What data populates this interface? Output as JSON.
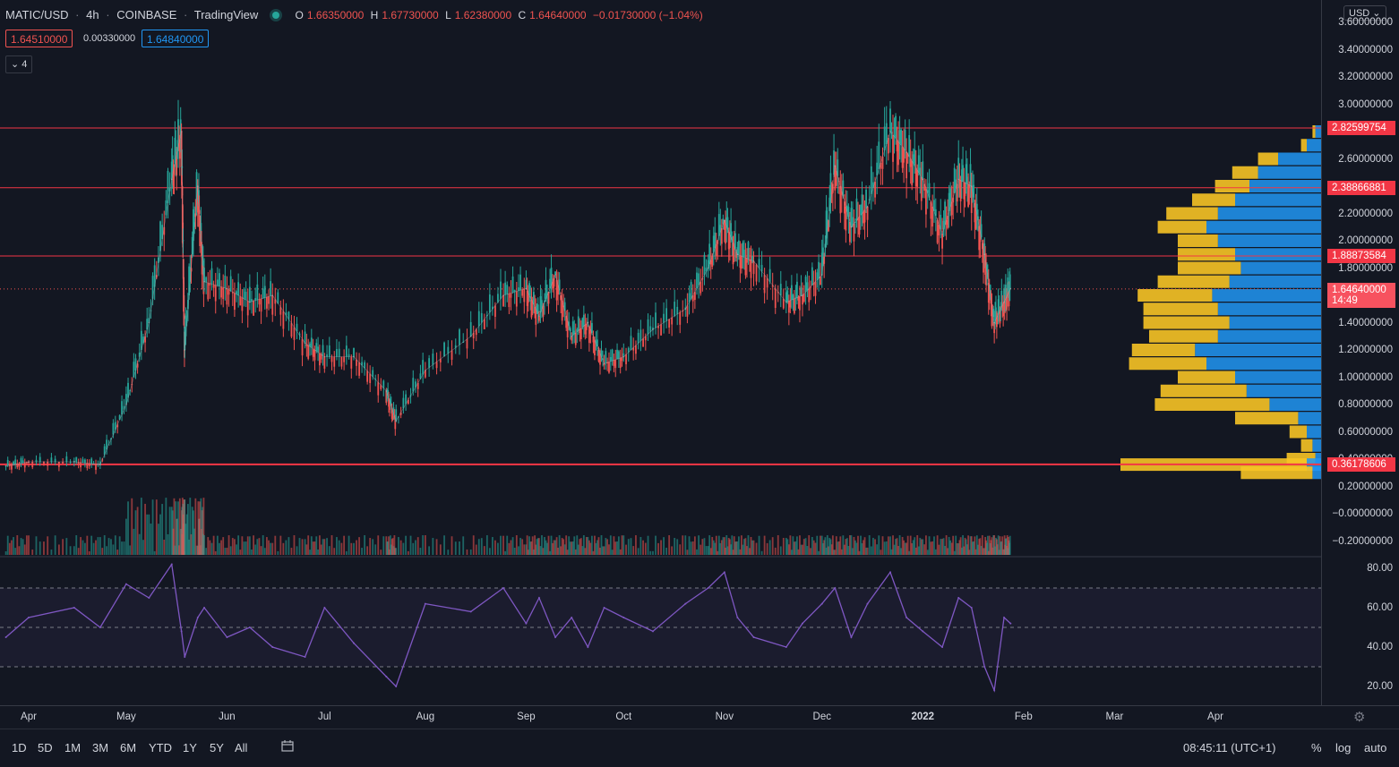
{
  "header": {
    "symbol": "MATIC/USD",
    "interval": "4h",
    "exchange": "COINBASE",
    "source": "TradingView",
    "ohlc": {
      "o_label": "O",
      "o": "1.66350000",
      "h_label": "H",
      "h": "1.67730000",
      "l_label": "L",
      "l": "1.62380000",
      "c_label": "C",
      "c": "1.64640000",
      "change": "−0.01730000 (−1.04%)"
    },
    "bid": "1.64510000",
    "spread": "0.00330000",
    "ask": "1.64840000",
    "indicator_count": "4"
  },
  "currency_button": "USD",
  "colors": {
    "background": "#131722",
    "up": "#26a69a",
    "down": "#ef5350",
    "level_line": "#f23645",
    "rsi": "#7e57c2",
    "vp_up": "#2196f3",
    "vp_down": "#f7c325"
  },
  "price_axis_labels": [
    "3.60000000",
    "3.40000000",
    "3.20000000",
    "3.00000000",
    "2.60000000",
    "2.20000000",
    "2.00000000",
    "1.80000000",
    "1.40000000",
    "1.20000000",
    "1.00000000",
    "0.80000000",
    "0.60000000",
    "0.40000000",
    "0.20000000",
    "−0.00000000",
    "−0.20000000"
  ],
  "price_tags": [
    {
      "label": "2.82599754",
      "kind": "level"
    },
    {
      "label": "2.38866881",
      "kind": "level"
    },
    {
      "label": "1.88873584",
      "kind": "level"
    },
    {
      "label": "1.64640000",
      "sub": "14:49",
      "kind": "last"
    },
    {
      "label": "0.36178606",
      "kind": "support"
    }
  ],
  "rsi_axis_labels": [
    "80.00",
    "60.00",
    "40.00",
    "20.00"
  ],
  "time_labels": [
    "Apr",
    "May",
    "Jun",
    "Jul",
    "Aug",
    "Sep",
    "Oct",
    "Nov",
    "Dec",
    "2022",
    "Feb",
    "Mar",
    "Apr"
  ],
  "bottom_bar": {
    "ranges": [
      "1D",
      "5D",
      "1M",
      "3M",
      "6M",
      "YTD",
      "1Y",
      "5Y",
      "All"
    ],
    "clock": "08:45:11 (UTC+1)",
    "right": [
      "%",
      "log",
      "auto"
    ]
  },
  "chart_data": {
    "type": "line",
    "title": "MATIC/USD 4h COINBASE",
    "xlabel": "",
    "ylabel": "",
    "ylim": [
      -0.25,
      3.65
    ],
    "x": [
      "2021-03-25",
      "2021-04-01",
      "2021-04-15",
      "2021-04-23",
      "2021-05-01",
      "2021-05-08",
      "2021-05-15",
      "2021-05-18",
      "2021-05-19",
      "2021-05-23",
      "2021-05-25",
      "2021-06-01",
      "2021-06-08",
      "2021-06-15",
      "2021-06-25",
      "2021-07-01",
      "2021-07-10",
      "2021-07-20",
      "2021-07-23",
      "2021-08-01",
      "2021-08-15",
      "2021-08-25",
      "2021-09-01",
      "2021-09-05",
      "2021-09-10",
      "2021-09-15",
      "2021-09-20",
      "2021-09-25",
      "2021-10-01",
      "2021-10-10",
      "2021-10-20",
      "2021-10-27",
      "2021-11-01",
      "2021-11-05",
      "2021-11-10",
      "2021-11-20",
      "2021-11-25",
      "2021-12-01",
      "2021-12-05",
      "2021-12-10",
      "2021-12-15",
      "2021-12-22",
      "2021-12-27",
      "2022-01-01",
      "2022-01-07",
      "2022-01-12",
      "2022-01-16",
      "2022-01-20",
      "2022-01-23",
      "2022-01-26",
      "2022-01-28"
    ],
    "series": [
      {
        "values": [
          0.35,
          0.38,
          0.38,
          0.36,
          0.8,
          1.4,
          2.45,
          2.8,
          1.2,
          2.4,
          1.7,
          1.65,
          1.55,
          1.6,
          1.25,
          1.15,
          1.15,
          0.9,
          0.68,
          1.05,
          1.3,
          1.6,
          1.65,
          1.45,
          1.75,
          1.3,
          1.4,
          1.1,
          1.15,
          1.35,
          1.5,
          1.8,
          2.15,
          1.9,
          1.85,
          1.55,
          1.6,
          1.75,
          2.55,
          2.1,
          2.25,
          2.8,
          2.65,
          2.45,
          2.05,
          2.45,
          2.4,
          1.9,
          1.4,
          1.55,
          1.65
        ]
      }
    ],
    "horizontal_levels": [
      2.82599754,
      2.38866881,
      1.88873584,
      0.36178606
    ],
    "last_price": 1.6464,
    "rsi": {
      "ylim": [
        10,
        90
      ],
      "band": [
        30,
        70
      ],
      "mid": 50,
      "values": [
        45,
        55,
        60,
        50,
        72,
        65,
        82,
        48,
        35,
        55,
        60,
        45,
        50,
        40,
        35,
        60,
        42,
        25,
        20,
        62,
        58,
        70,
        52,
        65,
        45,
        55,
        40,
        60,
        55,
        48,
        62,
        70,
        78,
        55,
        45,
        40,
        52,
        62,
        70,
        45,
        62,
        78,
        55,
        48,
        40,
        65,
        60,
        30,
        18,
        55,
        52
      ]
    },
    "volume_profile": [
      {
        "price": 2.8,
        "up": 0.02,
        "down": 0.01
      },
      {
        "price": 2.7,
        "up": 0.05,
        "down": 0.02
      },
      {
        "price": 2.6,
        "up": 0.15,
        "down": 0.07
      },
      {
        "price": 2.5,
        "up": 0.22,
        "down": 0.09
      },
      {
        "price": 2.4,
        "up": 0.25,
        "down": 0.12
      },
      {
        "price": 2.3,
        "up": 0.3,
        "down": 0.15
      },
      {
        "price": 2.2,
        "up": 0.36,
        "down": 0.18
      },
      {
        "price": 2.1,
        "up": 0.4,
        "down": 0.17
      },
      {
        "price": 2.0,
        "up": 0.36,
        "down": 0.14
      },
      {
        "price": 1.9,
        "up": 0.3,
        "down": 0.2
      },
      {
        "price": 1.8,
        "up": 0.28,
        "down": 0.22
      },
      {
        "price": 1.7,
        "up": 0.32,
        "down": 0.25
      },
      {
        "price": 1.6,
        "up": 0.38,
        "down": 0.26
      },
      {
        "price": 1.5,
        "up": 0.36,
        "down": 0.26
      },
      {
        "price": 1.4,
        "up": 0.32,
        "down": 0.3
      },
      {
        "price": 1.3,
        "up": 0.36,
        "down": 0.24
      },
      {
        "price": 1.2,
        "up": 0.44,
        "down": 0.22
      },
      {
        "price": 1.1,
        "up": 0.4,
        "down": 0.27
      },
      {
        "price": 1.0,
        "up": 0.3,
        "down": 0.2
      },
      {
        "price": 0.9,
        "up": 0.26,
        "down": 0.3
      },
      {
        "price": 0.8,
        "up": 0.18,
        "down": 0.4
      },
      {
        "price": 0.7,
        "up": 0.08,
        "down": 0.22
      },
      {
        "price": 0.6,
        "up": 0.05,
        "down": 0.06
      },
      {
        "price": 0.5,
        "up": 0.03,
        "down": 0.04
      },
      {
        "price": 0.4,
        "up": 0.02,
        "down": 0.1
      },
      {
        "price": 0.36,
        "up": 0.05,
        "down": 0.65
      },
      {
        "price": 0.3,
        "up": 0.03,
        "down": 0.25
      }
    ]
  }
}
